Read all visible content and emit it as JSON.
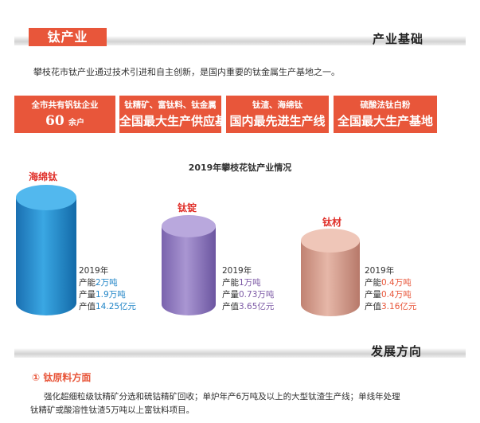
{
  "section1": {
    "tag": "钛产业",
    "title": "产业基础"
  },
  "intro": "攀枝花市钛产业通过技术引进和自主创新，是国内重要的钛金属生产基地之一。",
  "boxes": [
    {
      "line1": "全市共有钒钛企业",
      "number": "60",
      "unit": "余户"
    },
    {
      "line1": "钛精矿、富钛料、钛金属",
      "line2": "全国最大生产供应基地"
    },
    {
      "line1": "钛渣、海绵钛",
      "line2": "国内最先进生产线"
    },
    {
      "line1": "硫酸法钛白粉",
      "line2": "全国最大生产基地"
    }
  ],
  "chart_title": "2019年攀枝花钛产业情况",
  "products": [
    {
      "name": "海绵钛",
      "year": "2019年",
      "cap_label": "产能",
      "cap": "2万吨",
      "out_label": "产量",
      "out": "1.9万吨",
      "val_label": "产值",
      "val": "14.25亿元",
      "color": "#1f84c7"
    },
    {
      "name": "钛锭",
      "year": "2019年",
      "cap_label": "产能",
      "cap": "1万吨",
      "out_label": "产量",
      "out": "0.73万吨",
      "val_label": "产值",
      "val": "3.65亿元",
      "color": "#7d5aa6"
    },
    {
      "name": "钛材",
      "year": "2019年",
      "cap_label": "产能",
      "cap": "0.4万吨",
      "out_label": "产量",
      "out": "0.4万吨",
      "val_label": "产值",
      "val": "3.16亿元",
      "color": "#e8563a"
    }
  ],
  "section2": {
    "title": "发展方向"
  },
  "subsection": {
    "title": "① 钛原料方面"
  },
  "paragraph": {
    "line1": "强化超细粒级钛精矿分选和硫钴精矿回收；单炉年产6万吨及以上的大型钛渣生产线；单线年处理",
    "line2": "钛精矿或酸溶性钛渣5万吨以上富钛料项目。"
  }
}
